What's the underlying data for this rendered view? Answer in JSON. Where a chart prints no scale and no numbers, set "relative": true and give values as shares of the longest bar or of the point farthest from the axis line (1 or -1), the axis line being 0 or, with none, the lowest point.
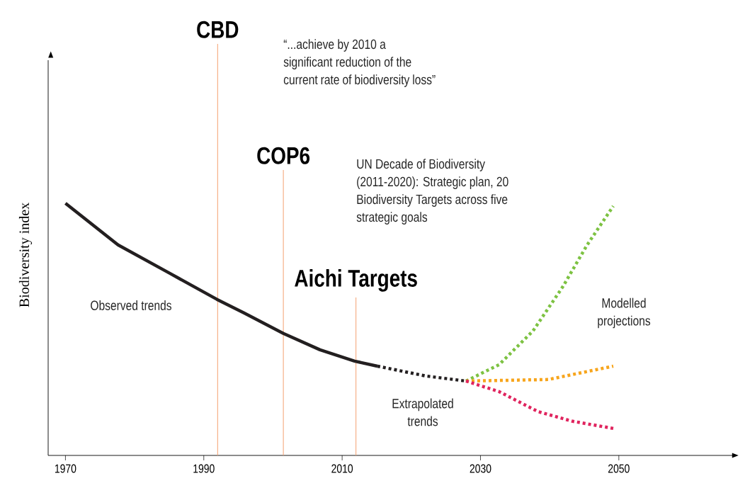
{
  "chart_data": {
    "type": "line",
    "relative": true,
    "ylabel": "Biodiversity index",
    "xlim": [
      1967.5,
      2066.5
    ],
    "xticks": [
      1970,
      1990,
      2010,
      2030,
      2050
    ],
    "series": [
      {
        "color": "#231f20",
        "line_style": "solid",
        "x": [
          1970,
          1977.6,
          1984.9,
          1991.9,
          1995.8,
          2001.5,
          2006.8,
          2011.8,
          2015.1
        ],
        "values": [
          1.0,
          0.835,
          0.725,
          0.619,
          0.565,
          0.484,
          0.419,
          0.374,
          0.354
        ]
      },
      {
        "color": "#231f20",
        "line_style": "dotted",
        "x": [
          2015.1,
          2022.1,
          2027.9
        ],
        "values": [
          0.354,
          0.315,
          0.295
        ]
      },
      {
        "color": "#7dc242",
        "line_style": "dotted",
        "x": [
          2027.9,
          2032.7,
          2037.6,
          2041.9,
          2045.4,
          2049.2
        ],
        "values": [
          0.295,
          0.36,
          0.494,
          0.669,
          0.834,
          0.989
        ]
      },
      {
        "color": "#f7a51c",
        "line_style": "dotted",
        "x": [
          2027.9,
          2039.8,
          2049.2
        ],
        "values": [
          0.295,
          0.301,
          0.354
        ]
      },
      {
        "color": "#e0245e",
        "line_style": "dotted",
        "x": [
          2027.9,
          2032.7,
          2038.3,
          2043.2,
          2049.2
        ],
        "values": [
          0.295,
          0.253,
          0.174,
          0.136,
          0.107
        ]
      }
    ],
    "ref_lines": [
      {
        "axis": "x",
        "value": 1992,
        "label": "CBD",
        "color": "#f4a070"
      },
      {
        "axis": "x",
        "value": 2001.5,
        "label": "COP6",
        "color": "#f4a070"
      },
      {
        "axis": "x",
        "value": 2012,
        "label": "Aichi Targets",
        "color": "#f4a070"
      }
    ],
    "annotations": [
      "“...achieve by 2010 a significant reduction of the current rate of biodiversity loss”",
      "UN Decade of Biodiversity (2011-2020): Strategic plan, 20 Biodiversity Targets across five strategic goals",
      "Observed trends",
      "Extrapolated trends",
      "Modelled projections"
    ]
  }
}
